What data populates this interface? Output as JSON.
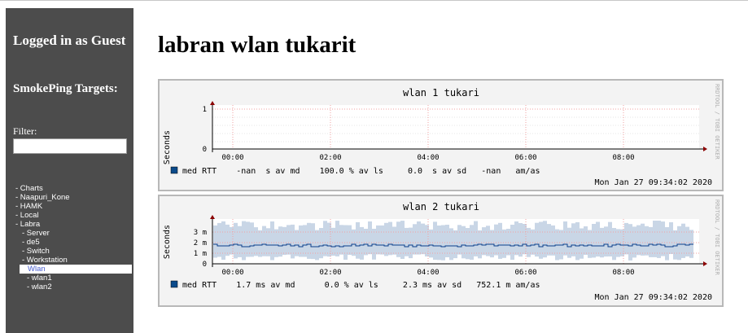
{
  "sidebar": {
    "login_text": "Logged in as Guest",
    "targets_heading": "SmokePing Targets:",
    "filter_label": "Filter:",
    "filter_value": "",
    "menu": [
      {
        "label": "- Charts"
      },
      {
        "label": "- Naapuri_Kone"
      },
      {
        "label": "- HAMK"
      },
      {
        "label": "- Local"
      },
      {
        "label": "- Labra"
      },
      {
        "label": "- Server"
      },
      {
        "label": "- de5"
      },
      {
        "label": "- Switch"
      },
      {
        "label": "- Workstation"
      },
      {
        "label": "Wlan"
      },
      {
        "label": "- wlan1"
      },
      {
        "label": "- wlan2"
      }
    ]
  },
  "main": {
    "title": "labran wlan tukarit"
  },
  "graphs": [
    {
      "title": "wlan 1 tukari",
      "ylabel": "Seconds",
      "yticks": [
        "1",
        "0"
      ],
      "xticks": [
        "00:00",
        "02:00",
        "04:00",
        "06:00",
        "08:00"
      ],
      "legend": "med RTT    -nan  s av md    100.0 % av ls     0.0  s av sd   -nan   am/as",
      "timestamp": "Mon Jan 27 09:34:02 2020",
      "side_label": "RRDTOOL / TOBI OETIKER"
    },
    {
      "title": "wlan 2 tukari",
      "ylabel": "Seconds",
      "yticks": [
        "3 m",
        "2 m",
        "1 m",
        "0"
      ],
      "xticks": [
        "00:00",
        "02:00",
        "04:00",
        "06:00",
        "08:00"
      ],
      "legend": "med RTT    1.7 ms av md      0.0 % av ls     2.3 ms av sd   752.1 m am/as",
      "timestamp": "Mon Jan 27 09:34:02 2020",
      "side_label": "RRDTOOL / TOBI OETIKER"
    }
  ],
  "colors": {
    "sidebar_bg": "#4c4c4c",
    "median_line": "#0a3d8a",
    "smoke": "#c9d6e6",
    "grid": "#f2a0a0",
    "legend_swatch": "#0b4a8a"
  }
}
